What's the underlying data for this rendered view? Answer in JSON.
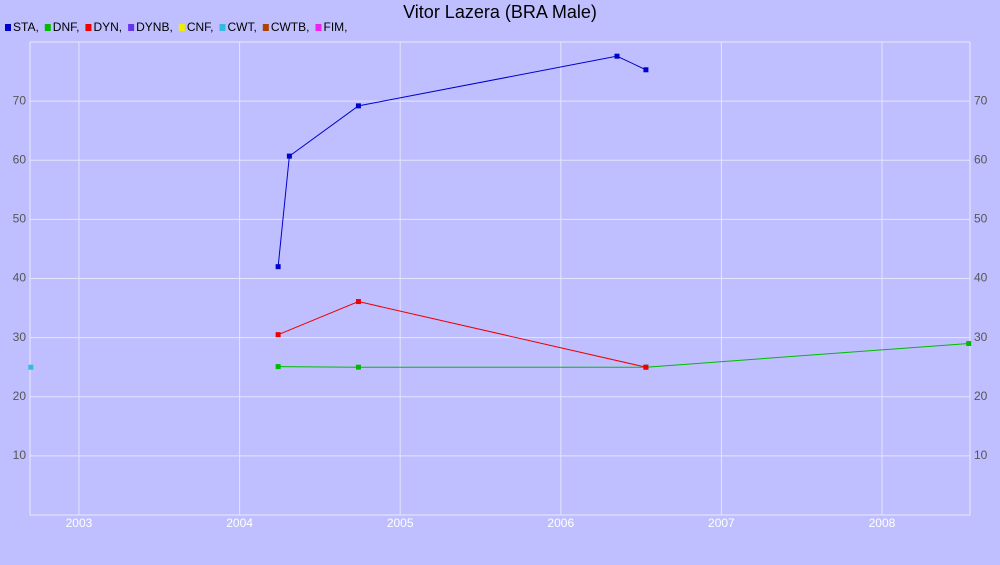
{
  "chart_data": {
    "type": "line",
    "title": "Vitor Lazera (BRA Male)",
    "xlim": [
      2002.695,
      2008.548
    ],
    "xticks": [
      2003,
      2004,
      2005,
      2006,
      2007,
      2008
    ],
    "ylim": [
      0,
      80
    ],
    "yticks": [
      10,
      20,
      30,
      40,
      50,
      60,
      70
    ],
    "grid": true,
    "series": [
      {
        "name": "STA,",
        "color": "#0000cc",
        "x": [
          2004.24,
          2004.31,
          2004.74,
          2006.35,
          2006.53
        ],
        "values": [
          42.0,
          60.7,
          69.2,
          77.6,
          75.3
        ]
      },
      {
        "name": "DNF,",
        "color": "#00bb00",
        "x": [
          2004.24,
          2004.74,
          2006.53,
          2008.54
        ],
        "values": [
          25.1,
          25.0,
          25.0,
          29.0
        ]
      },
      {
        "name": "DYN,",
        "color": "#ee0000",
        "x": [
          2004.24,
          2004.74,
          2006.53
        ],
        "values": [
          30.5,
          36.1,
          25.0
        ]
      },
      {
        "name": "DYNB,",
        "color": "#6633ee",
        "x": [],
        "values": []
      },
      {
        "name": "CNF,",
        "color": "#eeee00",
        "x": [],
        "values": []
      },
      {
        "name": "CWT,",
        "color": "#33bbdd",
        "x": [
          2002.7
        ],
        "values": [
          25.0
        ]
      },
      {
        "name": "CWTB,",
        "color": "#aa4400",
        "x": [],
        "values": []
      },
      {
        "name": "FIM,",
        "color": "#ee22ee",
        "x": [],
        "values": []
      }
    ]
  }
}
